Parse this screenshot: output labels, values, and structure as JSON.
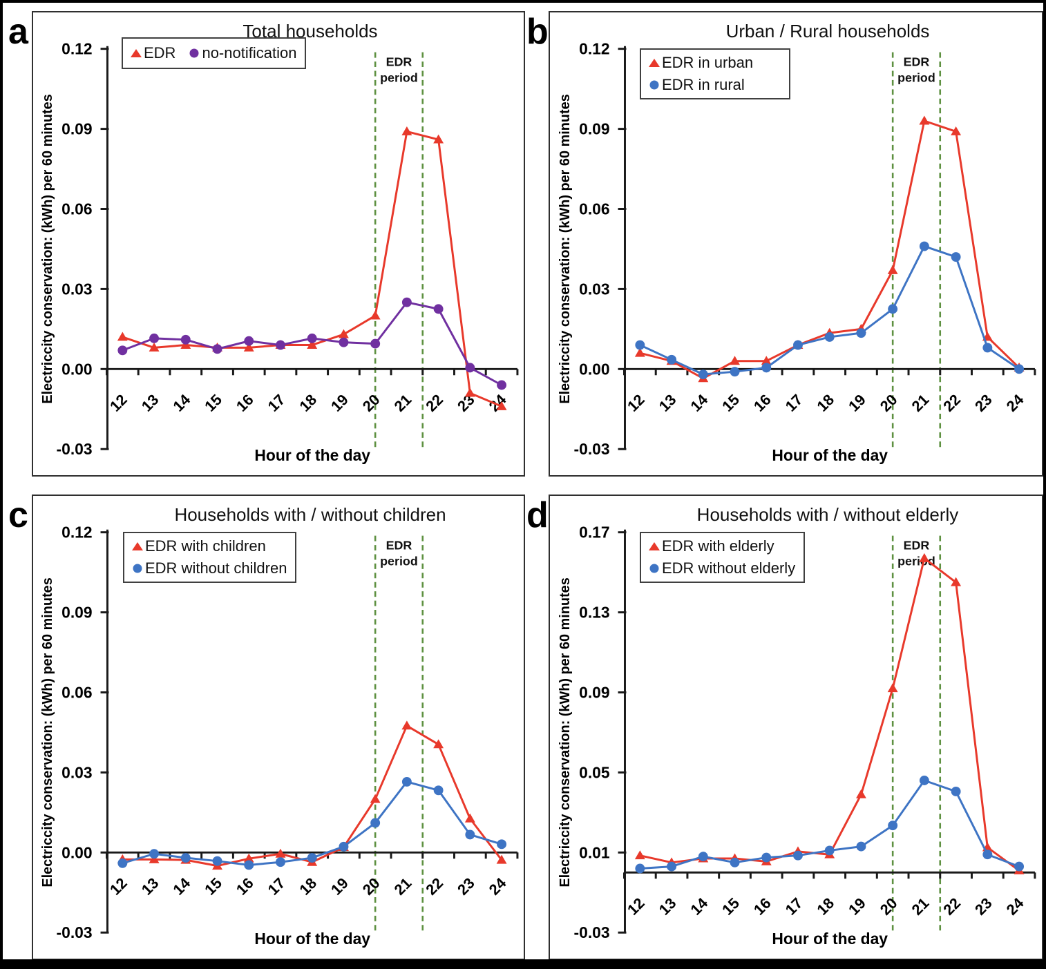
{
  "figure": {
    "xlabel": "Hour of the day",
    "ylabel": "Electriccity conservation: (kWh) per 60 minutes",
    "colors": {
      "edr_red": "#E8392B",
      "no_notification_purple": "#7030A0",
      "series_blue": "#3E74C4",
      "edr_period_green": "#5E9141",
      "axis_black": "#1a1a1a"
    }
  },
  "chart_data": [
    {
      "type": "line",
      "letter": "a",
      "title": "Total households",
      "xlabel": "Hour of the day",
      "ylabel": "Electriccity conservation: (kWh) per 60 minutes",
      "x": [
        "12",
        "13",
        "14",
        "15",
        "16",
        "17",
        "18",
        "19",
        "20",
        "21",
        "22",
        "23",
        "24"
      ],
      "ytick_labels": [
        "0.12",
        "0.09",
        "0.06",
        "0.03",
        "0.00",
        "-0.03"
      ],
      "ylim": [
        -0.03,
        0.12
      ],
      "grid": false,
      "legend_layout": "row",
      "edr_period": {
        "label_lines": [
          "EDR",
          "period"
        ],
        "start_hour": 20,
        "end_hour": 21.5
      },
      "series": [
        {
          "name": "EDR",
          "color": "#E8392B",
          "marker": "triangle",
          "values": [
            0.012,
            0.008,
            0.009,
            0.008,
            0.008,
            0.009,
            0.009,
            0.013,
            0.02,
            0.089,
            0.086,
            -0.009,
            -0.014
          ]
        },
        {
          "name": "no-notification",
          "color": "#7030A0",
          "marker": "circle",
          "values": [
            0.007,
            0.0115,
            0.011,
            0.0075,
            0.0105,
            0.009,
            0.0115,
            0.01,
            0.0095,
            0.025,
            0.0225,
            0.0005,
            -0.006
          ]
        }
      ]
    },
    {
      "type": "line",
      "letter": "b",
      "title": "Urban / Rural households",
      "xlabel": "Hour of the day",
      "ylabel": "Electriccity conservation: (kWh) per 60 minutes",
      "x": [
        "12",
        "13",
        "14",
        "15",
        "16",
        "17",
        "18",
        "19",
        "20",
        "21",
        "22",
        "23",
        "24"
      ],
      "ytick_labels": [
        "0.12",
        "0.09",
        "0.06",
        "0.03",
        "0.00",
        "-0.03"
      ],
      "ylim": [
        -0.03,
        0.12
      ],
      "grid": false,
      "legend_layout": "column",
      "edr_period": {
        "label_lines": [
          "EDR",
          "period"
        ],
        "start_hour": 20,
        "end_hour": 21.5
      },
      "series": [
        {
          "name": "EDR in urban",
          "color": "#E8392B",
          "marker": "triangle",
          "values": [
            0.006,
            0.003,
            -0.0035,
            0.003,
            0.003,
            0.009,
            0.0135,
            0.015,
            0.037,
            0.093,
            0.089,
            0.012,
            0.0005
          ]
        },
        {
          "name": "EDR in rural",
          "color": "#3E74C4",
          "marker": "circle",
          "values": [
            0.009,
            0.0035,
            -0.002,
            -0.001,
            0.0005,
            0.009,
            0.012,
            0.0135,
            0.0225,
            0.046,
            0.042,
            0.008,
            0.0
          ]
        }
      ]
    },
    {
      "type": "line",
      "letter": "c",
      "title": "Households with / without children",
      "xlabel": "Hour of the day",
      "ylabel": "Electriccity conservation: (kWh) per 60 minutes",
      "x": [
        "12",
        "13",
        "14",
        "15",
        "16",
        "17",
        "18",
        "19",
        "20",
        "21",
        "22",
        "23",
        "24"
      ],
      "ytick_labels": [
        "0.12",
        "0.09",
        "0.06",
        "0.03",
        "0.00",
        "-0.03"
      ],
      "ylim": [
        -0.03,
        0.12
      ],
      "grid": false,
      "legend_layout": "column",
      "edr_period": {
        "label_lines": [
          "EDR",
          "period"
        ],
        "start_hour": 20,
        "end_hour": 21.5
      },
      "series": [
        {
          "name": "EDR with children",
          "color": "#E8392B",
          "marker": "triangle",
          "values": [
            -0.0026,
            -0.0026,
            -0.0028,
            -0.005,
            -0.0023,
            -0.0005,
            -0.0036,
            0.002,
            0.02,
            0.0475,
            0.0405,
            0.0127,
            -0.0028
          ]
        },
        {
          "name": "EDR without children",
          "color": "#3E74C4",
          "marker": "circle",
          "values": [
            -0.004,
            -0.0005,
            -0.002,
            -0.0032,
            -0.0047,
            -0.0036,
            -0.002,
            0.0022,
            0.0111,
            0.0265,
            0.0233,
            0.0067,
            0.0031
          ]
        }
      ]
    },
    {
      "type": "line",
      "letter": "d",
      "title": "Households with / without elderly",
      "xlabel": "Hour of the day",
      "ylabel": "Electriccity conservation: (kWh) per 60 minutes",
      "x": [
        "12",
        "13",
        "14",
        "15",
        "16",
        "17",
        "18",
        "19",
        "20",
        "21",
        "22",
        "23",
        "24"
      ],
      "ytick_labels": [
        "0.17",
        "0.13",
        "0.09",
        "0.05",
        "0.01",
        "-0.03"
      ],
      "ylim": [
        -0.03,
        0.17
      ],
      "grid": false,
      "legend_layout": "column",
      "edr_period": {
        "label_lines": [
          "EDR",
          "period"
        ],
        "start_hour": 20,
        "end_hour": 21.5
      },
      "series": [
        {
          "name": "EDR with elderly",
          "color": "#E8392B",
          "marker": "triangle",
          "values": [
            0.0085,
            0.005,
            0.007,
            0.007,
            0.0055,
            0.0105,
            0.009,
            0.039,
            0.092,
            0.157,
            0.145,
            0.0125,
            0.001
          ]
        },
        {
          "name": "EDR without elderly",
          "color": "#3E74C4",
          "marker": "circle",
          "values": [
            0.002,
            0.003,
            0.008,
            0.005,
            0.0075,
            0.0085,
            0.011,
            0.013,
            0.0235,
            0.046,
            0.0405,
            0.009,
            0.003
          ]
        }
      ]
    }
  ]
}
